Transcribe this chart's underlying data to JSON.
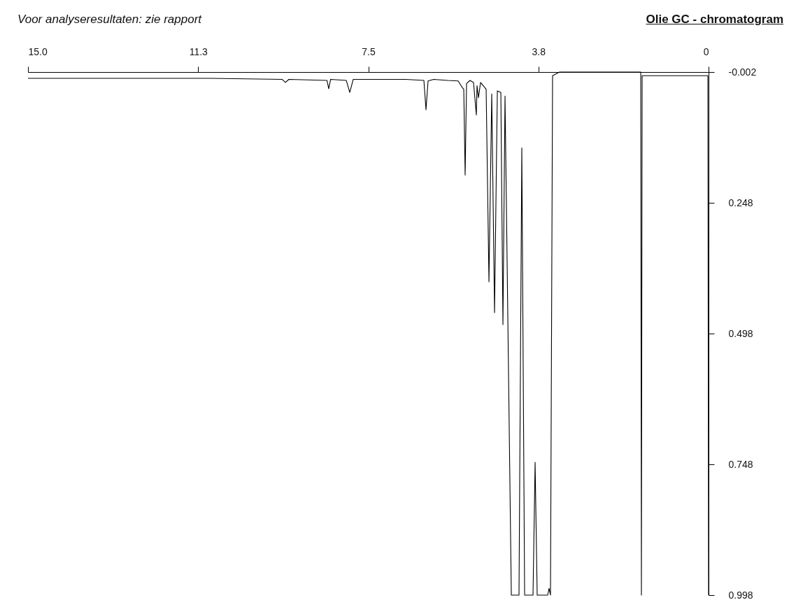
{
  "chart_data": {
    "type": "line",
    "title": "Olie GC - chromatogram",
    "annotations": [
      "Voor analyseresultaten: zie rapport"
    ],
    "x": [
      0,
      0.015,
      1.464,
      1.48,
      1.495,
      3.284,
      3.438,
      3.484,
      3.515,
      3.546,
      3.777,
      3.823,
      3.869,
      4.054,
      4.116,
      4.178,
      4.347,
      4.486,
      4.532,
      4.578,
      4.655,
      4.717,
      4.779,
      4.84,
      4.902,
      5.025,
      5.072,
      5.103,
      5.118,
      5.18,
      5.257,
      5.334,
      5.365,
      5.395,
      5.426,
      5.519,
      5.75,
      6.058,
      6.182,
      6.228,
      6.274,
      6.675,
      7.831,
      7.908,
      7.985,
      8.33,
      8.371,
      8.41,
      9.25,
      9.326,
      9.4,
      10.99,
      12.53,
      15.0
    ],
    "series": [
      {
        "color": "#000000",
        "values": [
          0.998,
          0.005,
          0.005,
          0.998,
          -0.002,
          -0.002,
          0.005,
          0.998,
          0.985,
          0.998,
          0.998,
          0.744,
          0.998,
          0.998,
          0.143,
          0.998,
          0.998,
          0.044,
          0.481,
          0.037,
          0.034,
          0.458,
          0.04,
          0.399,
          0.031,
          0.018,
          0.047,
          0.024,
          0.08,
          0.018,
          0.014,
          0.02,
          0.195,
          0.031,
          0.028,
          0.015,
          0.014,
          0.012,
          0.015,
          0.07,
          0.014,
          0.012,
          0.012,
          0.037,
          0.014,
          0.012,
          0.03,
          0.014,
          0.012,
          0.018,
          0.012,
          0.01,
          0.01,
          0.01
        ]
      }
    ],
    "xlim": [
      15,
      0
    ],
    "xticks": [
      0,
      {
        "value": 3.75,
        "label": "3.8"
      },
      7.5,
      {
        "value": 11.25,
        "label": "11.3"
      },
      {
        "value": 15,
        "label": "15.0"
      }
    ],
    "ylim": [
      0.998,
      -0.002
    ],
    "yticks": [
      -0.002,
      0.248,
      0.498,
      0.748,
      0.998
    ]
  }
}
